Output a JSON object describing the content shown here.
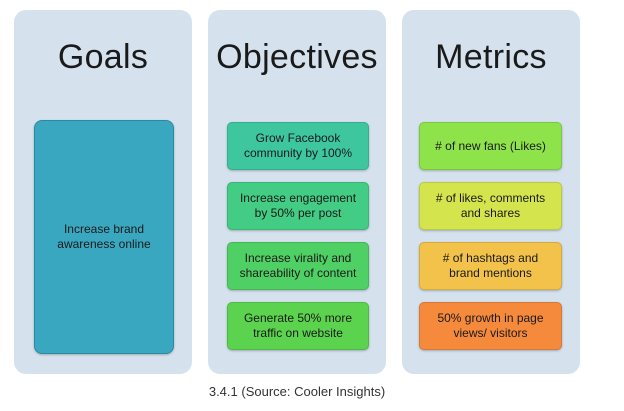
{
  "columns": {
    "goals": {
      "title": "Goals",
      "items": [
        {
          "text": "Increase brand awareness online",
          "color": "#3aa7c0"
        }
      ]
    },
    "objectives": {
      "title": "Objectives",
      "items": [
        {
          "text": "Grow Facebook community by 100%",
          "color": "#3ec79e"
        },
        {
          "text": "Increase engagement by 50% per post",
          "color": "#42cc84"
        },
        {
          "text": "Increase virality and shareability of content",
          "color": "#4fd065"
        },
        {
          "text": "Generate 50% more traffic on website",
          "color": "#5cd34e"
        }
      ]
    },
    "metrics": {
      "title": "Metrics",
      "items": [
        {
          "text": "# of new fans (Likes)",
          "color": "#8ee24a"
        },
        {
          "text": "# of likes, comments and shares",
          "color": "#d4e44d"
        },
        {
          "text": "# of hashtags and brand mentions",
          "color": "#f2c24a"
        },
        {
          "text": "50% growth in page views/ visitors",
          "color": "#f58a3c"
        }
      ]
    }
  },
  "caption": "3.4.1 (Source: Cooler Insights)",
  "colors": {
    "panel_background": "#d5e2ee"
  }
}
